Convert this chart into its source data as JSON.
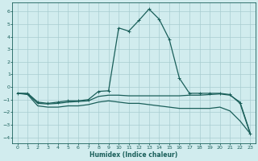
{
  "title": "",
  "xlabel": "Humidex (Indice chaleur)",
  "background_color": "#d1ecee",
  "grid_color": "#a8cdd0",
  "line_color": "#1a5f5a",
  "xlim": [
    -0.5,
    23.5
  ],
  "ylim": [
    -4.5,
    6.7
  ],
  "xticks": [
    0,
    1,
    2,
    3,
    4,
    5,
    6,
    7,
    8,
    9,
    10,
    11,
    12,
    13,
    14,
    15,
    16,
    17,
    18,
    19,
    20,
    21,
    22,
    23
  ],
  "yticks": [
    -4,
    -3,
    -2,
    -1,
    0,
    1,
    2,
    3,
    4,
    5,
    6
  ],
  "series1_x": [
    0,
    1,
    2,
    3,
    4,
    5,
    6,
    7,
    8,
    9,
    10,
    11,
    12,
    13,
    14,
    15,
    16,
    17,
    18,
    19,
    20,
    21,
    22,
    23
  ],
  "series1_y": [
    -0.5,
    -0.5,
    -1.2,
    -1.3,
    -1.2,
    -1.1,
    -1.1,
    -1.0,
    -0.35,
    -0.3,
    4.7,
    4.45,
    5.3,
    6.2,
    5.4,
    3.8,
    0.7,
    -0.5,
    -0.5,
    -0.5,
    -0.5,
    -0.6,
    -1.3,
    -3.7
  ],
  "series2_x": [
    0,
    1,
    2,
    3,
    4,
    5,
    6,
    7,
    8,
    9,
    10,
    11,
    12,
    13,
    14,
    15,
    16,
    17,
    18,
    19,
    20,
    21,
    22,
    23
  ],
  "series2_y": [
    -0.5,
    -0.55,
    -1.3,
    -1.35,
    -1.3,
    -1.2,
    -1.15,
    -1.1,
    -0.75,
    -0.65,
    -0.65,
    -0.7,
    -0.7,
    -0.7,
    -0.7,
    -0.7,
    -0.7,
    -0.65,
    -0.65,
    -0.6,
    -0.55,
    -0.65,
    -1.2,
    -3.65
  ],
  "series3_x": [
    0,
    1,
    2,
    3,
    4,
    5,
    6,
    7,
    8,
    9,
    10,
    11,
    12,
    13,
    14,
    15,
    16,
    17,
    18,
    19,
    20,
    21,
    22,
    23
  ],
  "series3_y": [
    -0.5,
    -0.6,
    -1.5,
    -1.6,
    -1.6,
    -1.5,
    -1.5,
    -1.4,
    -1.2,
    -1.1,
    -1.2,
    -1.3,
    -1.3,
    -1.4,
    -1.5,
    -1.6,
    -1.7,
    -1.7,
    -1.7,
    -1.7,
    -1.6,
    -1.9,
    -2.7,
    -3.7
  ]
}
